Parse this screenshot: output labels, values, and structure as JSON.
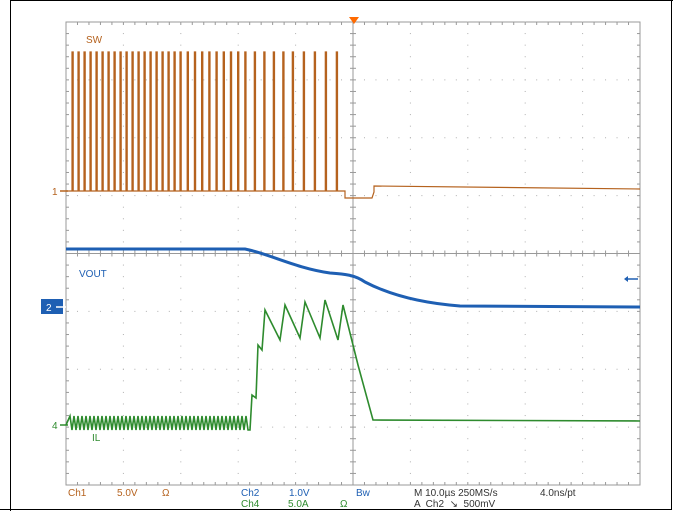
{
  "colors": {
    "ch1": "#b5621e",
    "ch2": "#1e5fb3",
    "ch4": "#2e8b2e",
    "grid": "#b0b0b0",
    "text": "#333333"
  },
  "traces": {
    "sw_label": "SW",
    "vout_label": "VOUT",
    "il_label": "IL"
  },
  "markers": {
    "ch1": "1",
    "ch2": "2",
    "ch4": "4"
  },
  "status": {
    "ch1_name": "Ch1",
    "ch1_scale": "5.0V",
    "ch1_unit": "Ω",
    "ch2_name": "Ch2",
    "ch2_scale": "1.0V",
    "ch4_name": "Ch4",
    "ch4_scale": "5.0A",
    "ch4_unit": "Ω",
    "bw": "Bw",
    "timebase": "M 10.0µs 250MS/s",
    "resolution": "4.0ns/pt",
    "trigger": "A  Ch2  ↘  500mV"
  }
}
